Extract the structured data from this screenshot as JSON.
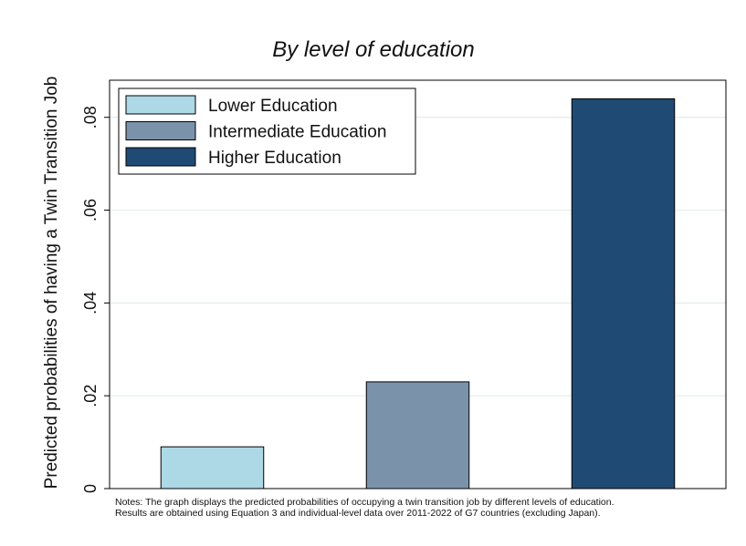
{
  "chart_data": {
    "type": "bar",
    "title": "By level of education",
    "ylabel": "Predicted probabilities of having a Twin Transition Job",
    "xlabel": "",
    "ylim": [
      0,
      0.088
    ],
    "yticks": [
      0,
      0.02,
      0.04,
      0.06,
      0.08
    ],
    "ytick_labels": [
      "0",
      ".02",
      ".04",
      ".06",
      ".08"
    ],
    "grid": true,
    "legend_position": "top-left",
    "series": [
      {
        "name": "Lower Education",
        "value": 0.009,
        "color": "#add8e6"
      },
      {
        "name": "Intermediate Education",
        "value": 0.023,
        "color": "#7a93ab"
      },
      {
        "name": "Higher Education",
        "value": 0.084,
        "color": "#1f4a73"
      }
    ],
    "notes": [
      "Notes: The graph displays the predicted probabilities of occupying a twin transition job by different levels of education.",
      "Results are obtained using Equation 3 and individual-level data over 2011-2022 of G7 countries (excluding Japan)."
    ]
  }
}
